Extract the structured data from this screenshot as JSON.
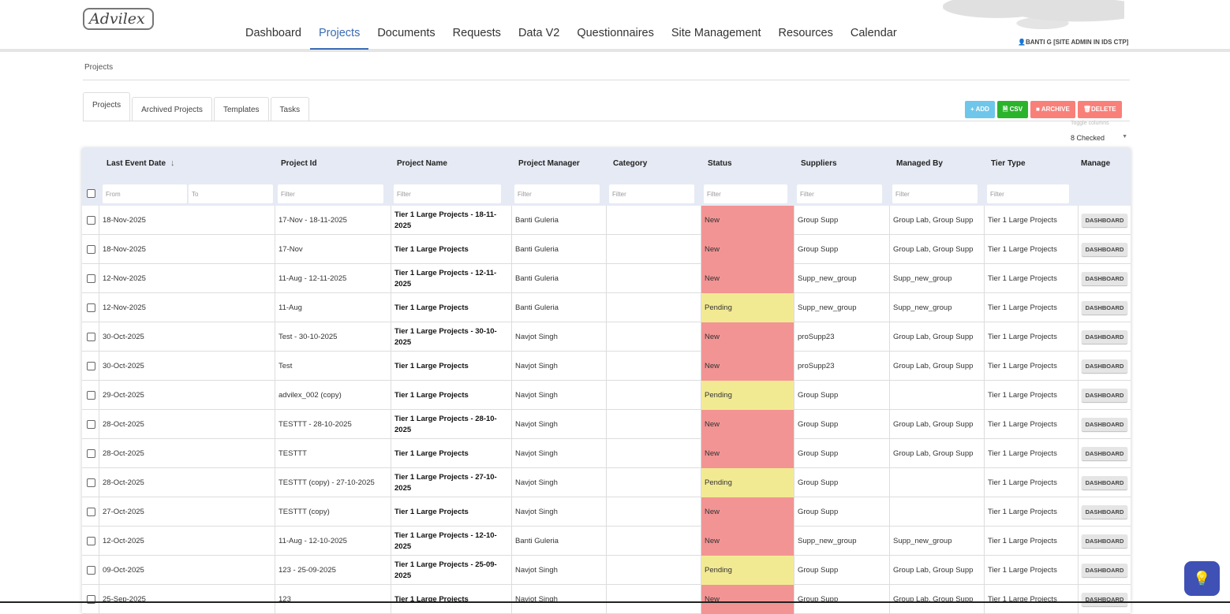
{
  "header": {
    "logo": "Advilex",
    "user": "BANTI G [SITE ADMIN IN IDS CTP]",
    "nav": [
      "Dashboard",
      "Projects",
      "Documents",
      "Requests",
      "Data V2",
      "Questionnaires",
      "Site Management",
      "Resources",
      "Calendar"
    ],
    "active_nav": "Projects"
  },
  "breadcrumb": "Projects",
  "tabs": [
    "Projects",
    "Archived Projects",
    "Templates",
    "Tasks"
  ],
  "actions": {
    "add": "+ ADD",
    "csv": "CSV",
    "archive": "ARCHIVE",
    "delete": "DELETE"
  },
  "colors": {
    "add": "#6ec6ea",
    "csv": "#2bb42b",
    "archive": "#f88079",
    "delete": "#f88079",
    "new": "#f29494",
    "pending": "#f2ea93",
    "accent": "#3a6bb5"
  },
  "toggle": {
    "label": "Toggle columns",
    "value": "8 Checked"
  },
  "table": {
    "columns": [
      "Last Event Date",
      "Project Id",
      "Project Name",
      "Project Manager",
      "Category",
      "Status",
      "Suppliers",
      "Managed By",
      "Tier Type",
      "Manage"
    ],
    "filters": {
      "from": "From",
      "to": "To",
      "filter": "Filter"
    },
    "button": "DASHBOARD",
    "rows": [
      [
        "18-Nov-2025",
        "17-Nov - 18-11-2025",
        "Tier 1 Large Projects - 18-11-2025",
        "Banti Guleria",
        "",
        "New",
        "Group Supp",
        "Group Lab, Group Supp",
        "Tier 1 Large Projects"
      ],
      [
        "18-Nov-2025",
        "17-Nov",
        "Tier 1 Large Projects",
        "Banti Guleria",
        "",
        "New",
        "Group Supp",
        "Group Lab, Group Supp",
        "Tier 1 Large Projects"
      ],
      [
        "12-Nov-2025",
        "11-Aug - 12-11-2025",
        "Tier 1 Large Projects - 12-11-2025",
        "Banti Guleria",
        "",
        "New",
        "Supp_new_group",
        "Supp_new_group",
        "Tier 1 Large Projects"
      ],
      [
        "12-Nov-2025",
        "11-Aug",
        "Tier 1 Large Projects",
        "Banti Guleria",
        "",
        "Pending",
        "Supp_new_group",
        "Supp_new_group",
        "Tier 1 Large Projects"
      ],
      [
        "30-Oct-2025",
        "Test - 30-10-2025",
        "Tier 1 Large Projects - 30-10-2025",
        "Navjot Singh",
        "",
        "New",
        "proSupp23",
        "Group Lab, Group Supp",
        "Tier 1 Large Projects"
      ],
      [
        "30-Oct-2025",
        "Test",
        "Tier 1 Large Projects",
        "Navjot Singh",
        "",
        "New",
        "proSupp23",
        "Group Lab, Group Supp",
        "Tier 1 Large Projects"
      ],
      [
        "29-Oct-2025",
        "advilex_002 (copy)",
        "Tier 1 Large Projects",
        "Navjot Singh",
        "",
        "Pending",
        "Group Supp",
        "",
        "Tier 1 Large Projects"
      ],
      [
        "28-Oct-2025",
        "TESTTT - 28-10-2025",
        "Tier 1 Large Projects - 28-10-2025",
        "Navjot Singh",
        "",
        "New",
        "Group Supp",
        "Group Lab, Group Supp",
        "Tier 1 Large Projects"
      ],
      [
        "28-Oct-2025",
        "TESTTT",
        "Tier 1 Large Projects",
        "Navjot Singh",
        "",
        "New",
        "Group Supp",
        "Group Lab, Group Supp",
        "Tier 1 Large Projects"
      ],
      [
        "28-Oct-2025",
        "TESTTT (copy) - 27-10-2025",
        "Tier 1 Large Projects - 27-10-2025",
        "Navjot Singh",
        "",
        "Pending",
        "Group Supp",
        "",
        "Tier 1 Large Projects"
      ],
      [
        "27-Oct-2025",
        "TESTTT (copy)",
        "Tier 1 Large Projects",
        "Navjot Singh",
        "",
        "New",
        "Group Supp",
        "",
        "Tier 1 Large Projects"
      ],
      [
        "12-Oct-2025",
        "11-Aug - 12-10-2025",
        "Tier 1 Large Projects - 12-10-2025",
        "Banti Guleria",
        "",
        "New",
        "Supp_new_group",
        "Supp_new_group",
        "Tier 1 Large Projects"
      ],
      [
        "09-Oct-2025",
        "123 - 25-09-2025",
        "Tier 1 Large Projects - 25-09-2025",
        "Navjot Singh",
        "",
        "Pending",
        "Group Supp",
        "Group Lab, Group Supp",
        "Tier 1 Large Projects"
      ],
      [
        "25-Sep-2025",
        "123",
        "Tier 1 Large Projects",
        "Navjot Singh",
        "",
        "New",
        "Group Supp",
        "Group Lab, Group Supp",
        "Tier 1 Large Projects"
      ]
    ]
  }
}
